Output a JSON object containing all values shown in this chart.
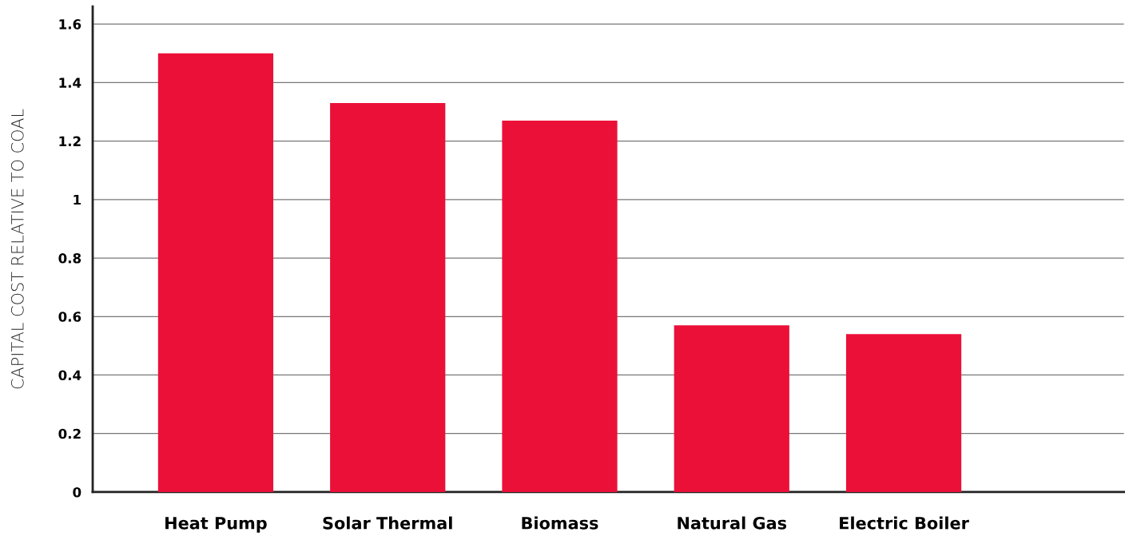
{
  "chart_data": {
    "type": "bar",
    "ylabel": "CAPITAL COST RELATIVE TO COAL",
    "categories": [
      "Heat Pump",
      "Solar Thermal",
      "Biomass",
      "Natural Gas",
      "Electric Boiler"
    ],
    "values": [
      1.5,
      1.33,
      1.27,
      0.57,
      0.54
    ],
    "color": "#eb1038",
    "ylim": [
      0,
      1.66
    ],
    "yticks": [
      0,
      0.2,
      0.4,
      0.6,
      0.8,
      1,
      1.2,
      1.4,
      1.6
    ],
    "grid": "y",
    "legend": false
  }
}
